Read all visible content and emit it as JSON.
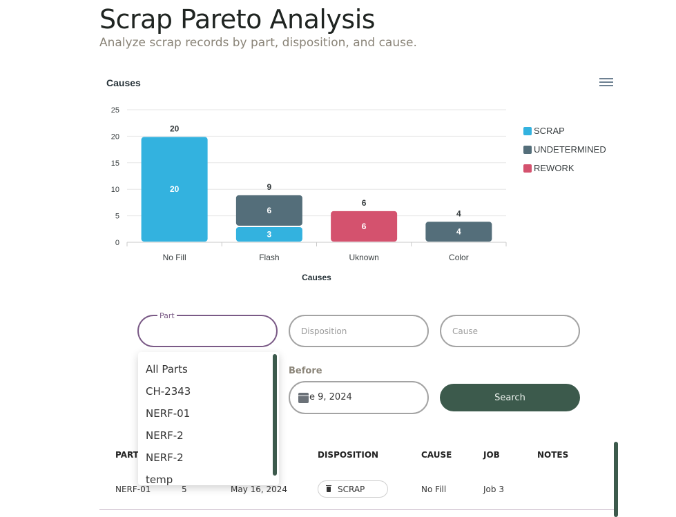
{
  "header": {
    "title": "Scrap Pareto Analysis",
    "subtitle": "Analyze scrap records by part, disposition, and cause."
  },
  "chart_data": {
    "type": "bar",
    "stacked": true,
    "title": "Causes",
    "xlabel": "Causes",
    "ylabel": "",
    "categories": [
      "No Fill",
      "Flash",
      "Uknown",
      "Color"
    ],
    "series": [
      {
        "name": "SCRAP",
        "color": "#33b2df",
        "values": [
          20,
          3,
          0,
          0
        ]
      },
      {
        "name": "UNDETERMINED",
        "color": "#546e7a",
        "values": [
          0,
          6,
          0,
          4
        ]
      },
      {
        "name": "REWORK",
        "color": "#d4526e",
        "values": [
          0,
          0,
          6,
          0
        ]
      }
    ],
    "totals": [
      20,
      9,
      6,
      4
    ],
    "ylim": [
      0,
      25
    ],
    "yticks": [
      0,
      5,
      10,
      15,
      20,
      25
    ],
    "grid": true,
    "legend_position": "right"
  },
  "chart_menu_icon": "hamburger-menu-icon",
  "filters": {
    "part_label": "Part",
    "disposition_placeholder": "Disposition",
    "cause_placeholder": "Cause",
    "before_label": "Before",
    "before_value": "e 9, 2024",
    "calendar_icon": "calendar-icon",
    "search_label": "Search"
  },
  "part_options": [
    "All Parts",
    "CH-2343",
    "NERF-01",
    "NERF-2",
    "NERF-2",
    "temp"
  ],
  "table": {
    "headers": {
      "part": "PART",
      "disposition": "DISPOSITION",
      "cause": "CAUSE",
      "job": "JOB",
      "notes": "NOTES"
    },
    "rows": [
      {
        "part": "NERF-01",
        "qty": "5",
        "date": "May 16, 2024",
        "disposition": "SCRAP",
        "cause": "No Fill",
        "job": "Job 3",
        "notes": ""
      }
    ]
  },
  "colors": {
    "accent": "#3c5a4c",
    "focus": "#7a5a86"
  }
}
